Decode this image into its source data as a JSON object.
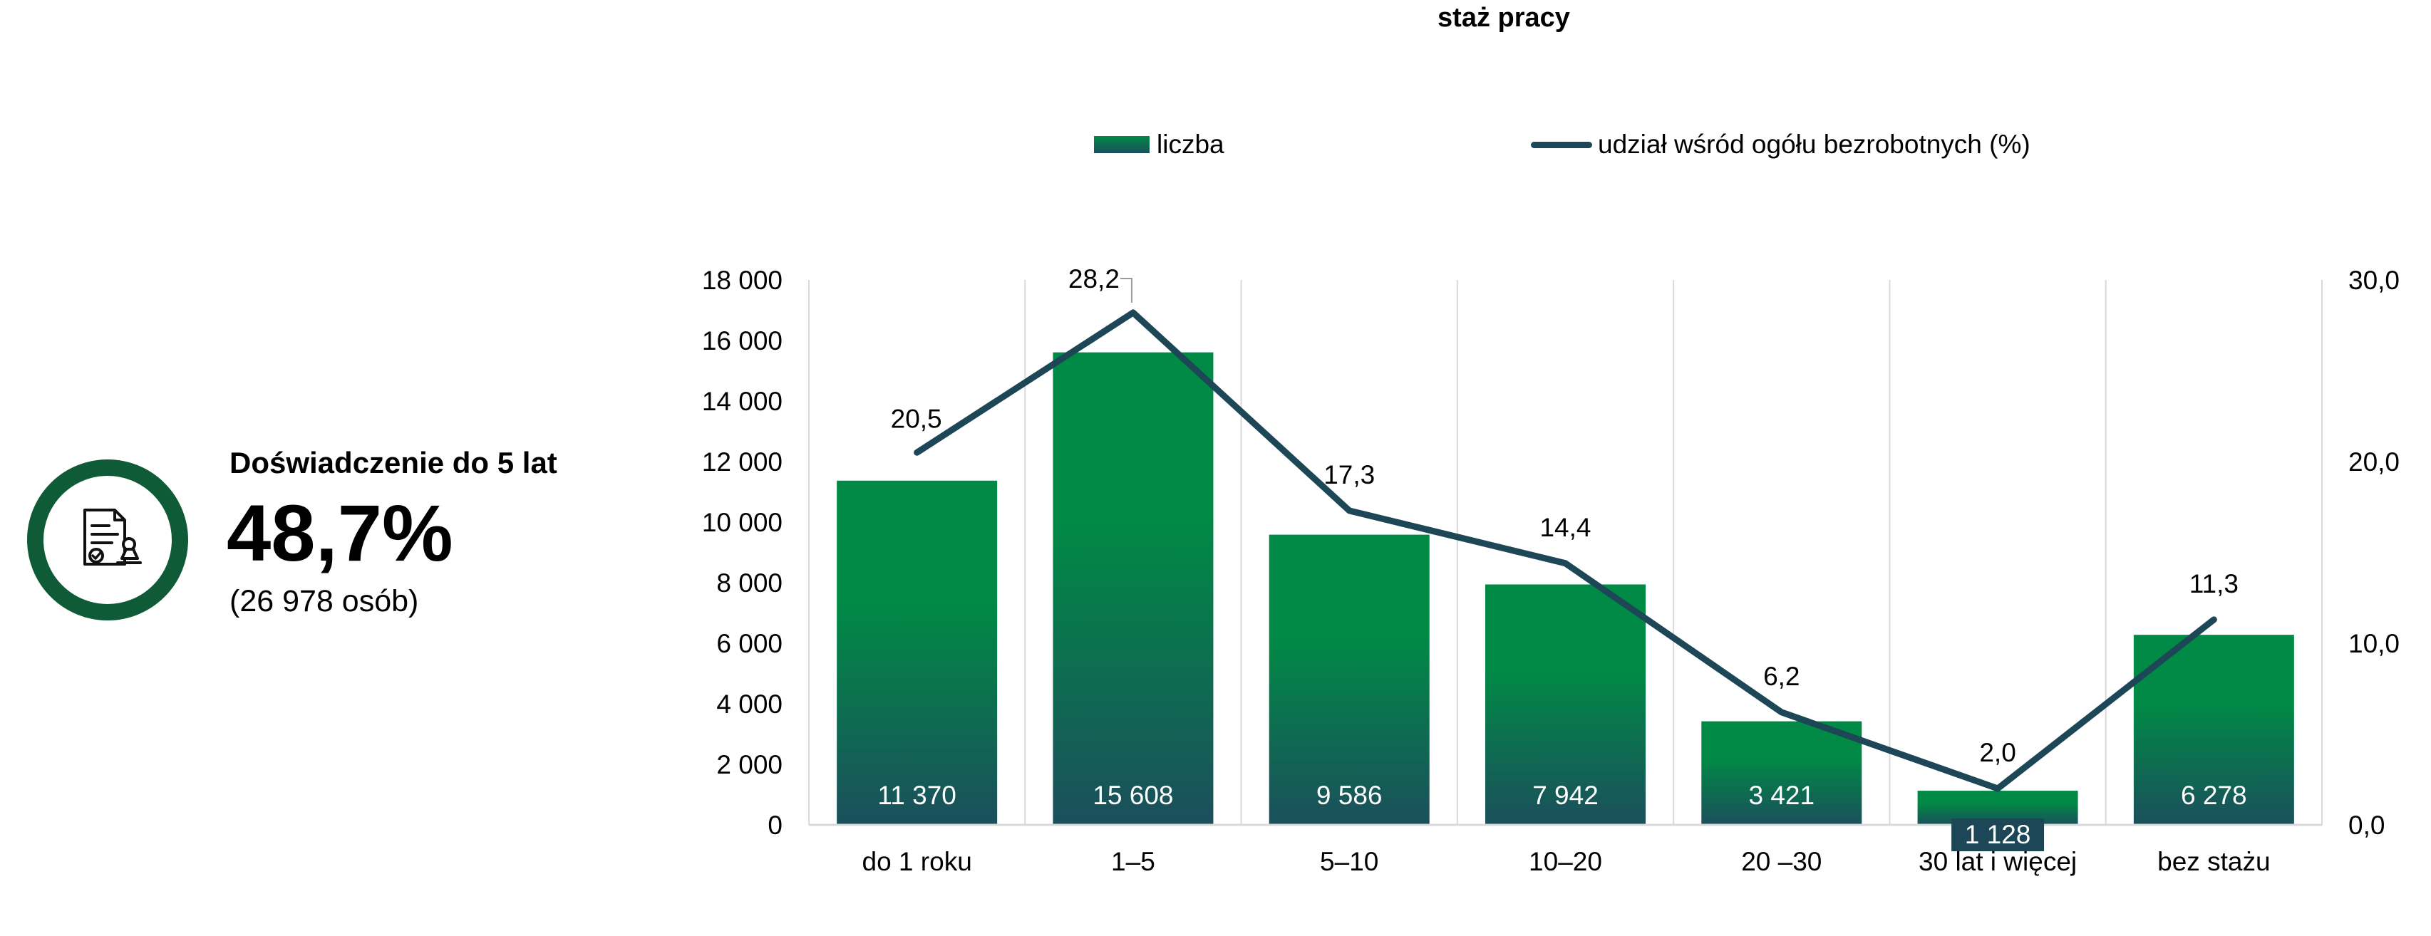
{
  "colors": {
    "bar_top": "#008a45",
    "bar_bottom": "#1b4f5c",
    "line": "#1d4656",
    "badge_ring": "#0f5b38",
    "grid": "#d9d9d9"
  },
  "kpi": {
    "icon": "document-stamp-icon",
    "heading": "Doświadczenie do 5 lat",
    "value": "48,7%",
    "sub": "(26 978 osób)"
  },
  "chart_data": {
    "type": "bar",
    "title": "staż pracy",
    "categories": [
      "do 1 roku",
      "1–5",
      "5–10",
      "10–20",
      "20 –30",
      "30 lat i więcej",
      "bez stażu"
    ],
    "series": [
      {
        "name": "liczba",
        "type": "bar",
        "axis": "left",
        "values": [
          11370,
          15608,
          9586,
          7942,
          3421,
          1128,
          6278
        ],
        "labels": [
          "11 370",
          "15 608",
          "9 586",
          "7 942",
          "3 421",
          "1 128",
          "6 278"
        ]
      },
      {
        "name": "udział wśród ogółu bezrobotnych (%)",
        "type": "line",
        "axis": "right",
        "values": [
          20.5,
          28.2,
          17.3,
          14.4,
          6.2,
          2.0,
          11.3
        ],
        "labels": [
          "20,5",
          "28,2",
          "17,3",
          "14,4",
          "6,2",
          "2,0",
          "11,3"
        ]
      }
    ],
    "y_left": {
      "ylim": [
        0,
        18000
      ],
      "ticks": [
        0,
        2000,
        4000,
        6000,
        8000,
        10000,
        12000,
        14000,
        16000,
        18000
      ],
      "tick_labels": [
        "0",
        "2 000",
        "4 000",
        "6 000",
        "8 000",
        "10 000",
        "12 000",
        "14 000",
        "16 000",
        "18 000"
      ]
    },
    "y_right": {
      "ylim": [
        0,
        30
      ],
      "ticks": [
        0,
        10,
        20,
        30
      ],
      "tick_labels": [
        "0,0",
        "10,0",
        "20,0",
        "30,0"
      ]
    },
    "grid": "vertical",
    "legend_position": "top"
  }
}
